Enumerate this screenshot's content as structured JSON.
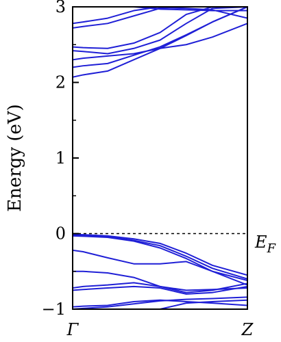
{
  "chart_data": {
    "type": "line",
    "title": "",
    "xlabel": "",
    "ylabel": "Energy (eV)",
    "x_ticks": [
      {
        "pos": 0,
        "label": "Γ"
      },
      {
        "pos": 1,
        "label": "Z"
      }
    ],
    "ylim": [
      -1,
      3
    ],
    "y_ticks": [
      {
        "value": -1,
        "label": "−1"
      },
      {
        "value": 0,
        "label": "0"
      },
      {
        "value": 1,
        "label": "1"
      },
      {
        "value": 2,
        "label": "2"
      },
      {
        "value": 3,
        "label": "3"
      }
    ],
    "fermi_level": {
      "value": 0,
      "style": "dashed",
      "label_main": "E",
      "label_sub": "F"
    },
    "line_color": "#1f1fd6",
    "x": [
      0,
      0.06,
      0.2,
      0.35,
      0.5,
      0.65,
      0.8,
      1.0
    ],
    "bands": [
      {
        "values": [
          2.07,
          2.1,
          2.15,
          2.3,
          2.45,
          2.62,
          2.8,
          3.0
        ]
      },
      {
        "values": [
          2.2,
          2.22,
          2.25,
          2.36,
          2.47,
          2.63,
          2.8,
          3.0
        ]
      },
      {
        "values": [
          2.3,
          2.32,
          2.35,
          2.38,
          2.45,
          2.5,
          2.6,
          2.78
        ]
      },
      {
        "values": [
          2.42,
          2.41,
          2.38,
          2.45,
          2.56,
          2.78,
          2.98,
          3.0
        ]
      },
      {
        "values": [
          2.47,
          2.46,
          2.45,
          2.52,
          2.66,
          2.9,
          3.0,
          3.0
        ]
      },
      {
        "values": [
          2.72,
          2.74,
          2.78,
          2.88,
          2.98,
          3.0,
          3.0,
          3.0
        ]
      },
      {
        "values": [
          2.78,
          2.8,
          2.85,
          2.95,
          3.0,
          3.0,
          3.0,
          3.0
        ]
      },
      {
        "values": [
          3.1,
          3.08,
          3.05,
          3.0,
          2.97,
          2.96,
          2.95,
          2.95
        ]
      },
      {
        "values": [
          3.2,
          3.15,
          3.1,
          3.02,
          2.99,
          2.98,
          2.96,
          2.85
        ]
      },
      {
        "values": [
          -0.01,
          -0.015,
          -0.03,
          -0.07,
          -0.13,
          -0.26,
          -0.42,
          -0.55
        ]
      },
      {
        "values": [
          -0.02,
          -0.025,
          -0.04,
          -0.09,
          -0.16,
          -0.3,
          -0.46,
          -0.6
        ]
      },
      {
        "values": [
          -0.03,
          -0.035,
          -0.05,
          -0.1,
          -0.19,
          -0.33,
          -0.5,
          -0.62
        ]
      },
      {
        "values": [
          -0.22,
          -0.24,
          -0.32,
          -0.4,
          -0.4,
          -0.37,
          -0.5,
          -0.68
        ]
      },
      {
        "values": [
          -0.5,
          -0.5,
          -0.52,
          -0.58,
          -0.7,
          -0.75,
          -0.74,
          -0.72
        ]
      },
      {
        "values": [
          -0.72,
          -0.7,
          -0.68,
          -0.65,
          -0.7,
          -0.78,
          -0.75,
          -0.66
        ]
      },
      {
        "values": [
          -0.75,
          -0.74,
          -0.72,
          -0.7,
          -0.72,
          -0.8,
          -0.78,
          -0.7
        ]
      },
      {
        "values": [
          -0.97,
          -0.96,
          -0.95,
          -0.9,
          -0.88,
          -0.9,
          -0.92,
          -0.95
        ]
      },
      {
        "values": [
          -1.0,
          -0.99,
          -0.97,
          -0.93,
          -0.89,
          -0.87,
          -0.86,
          -0.84
        ]
      },
      {
        "values": [
          -1.05,
          -1.0,
          -1.02,
          -1.05,
          -1.0,
          -0.92,
          -0.9,
          -0.88
        ]
      }
    ]
  }
}
